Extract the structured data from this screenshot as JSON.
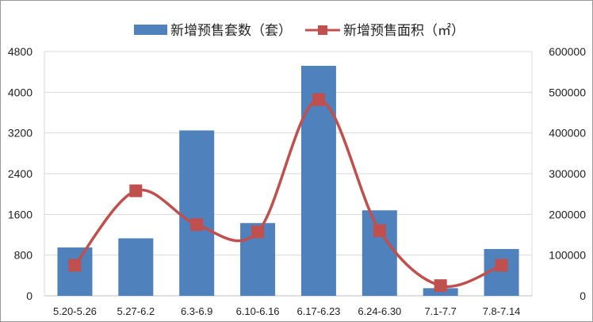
{
  "chart_data": {
    "type": "bar",
    "categories": [
      "5.20-5.26",
      "5.27-6.2",
      "6.3-6.9",
      "6.10-6.16",
      "6.17-6.23",
      "6.24-6.30",
      "7.1-7.7",
      "7.8-7.14"
    ],
    "series": [
      {
        "name": "新增预售套数（套）",
        "type": "bar",
        "axis": "left",
        "color": "#4f81bd",
        "values": [
          950,
          1130,
          3250,
          1430,
          4520,
          1680,
          150,
          920
        ]
      },
      {
        "name": "新增预售面积（㎡）",
        "type": "line",
        "smooth": true,
        "marker": "square",
        "axis": "right",
        "color": "#c0504d",
        "values": [
          75000,
          258000,
          175000,
          157000,
          482000,
          160000,
          25000,
          75000
        ]
      }
    ],
    "ylim_left": [
      0,
      4800
    ],
    "yticks_left": [
      "0",
      "800",
      "1600",
      "2400",
      "3200",
      "4000",
      "4800"
    ],
    "ylim_right": [
      0,
      600000
    ],
    "yticks_right": [
      "0",
      "100000",
      "200000",
      "300000",
      "400000",
      "500000",
      "600000"
    ],
    "grid": true,
    "legend": "top-center"
  }
}
